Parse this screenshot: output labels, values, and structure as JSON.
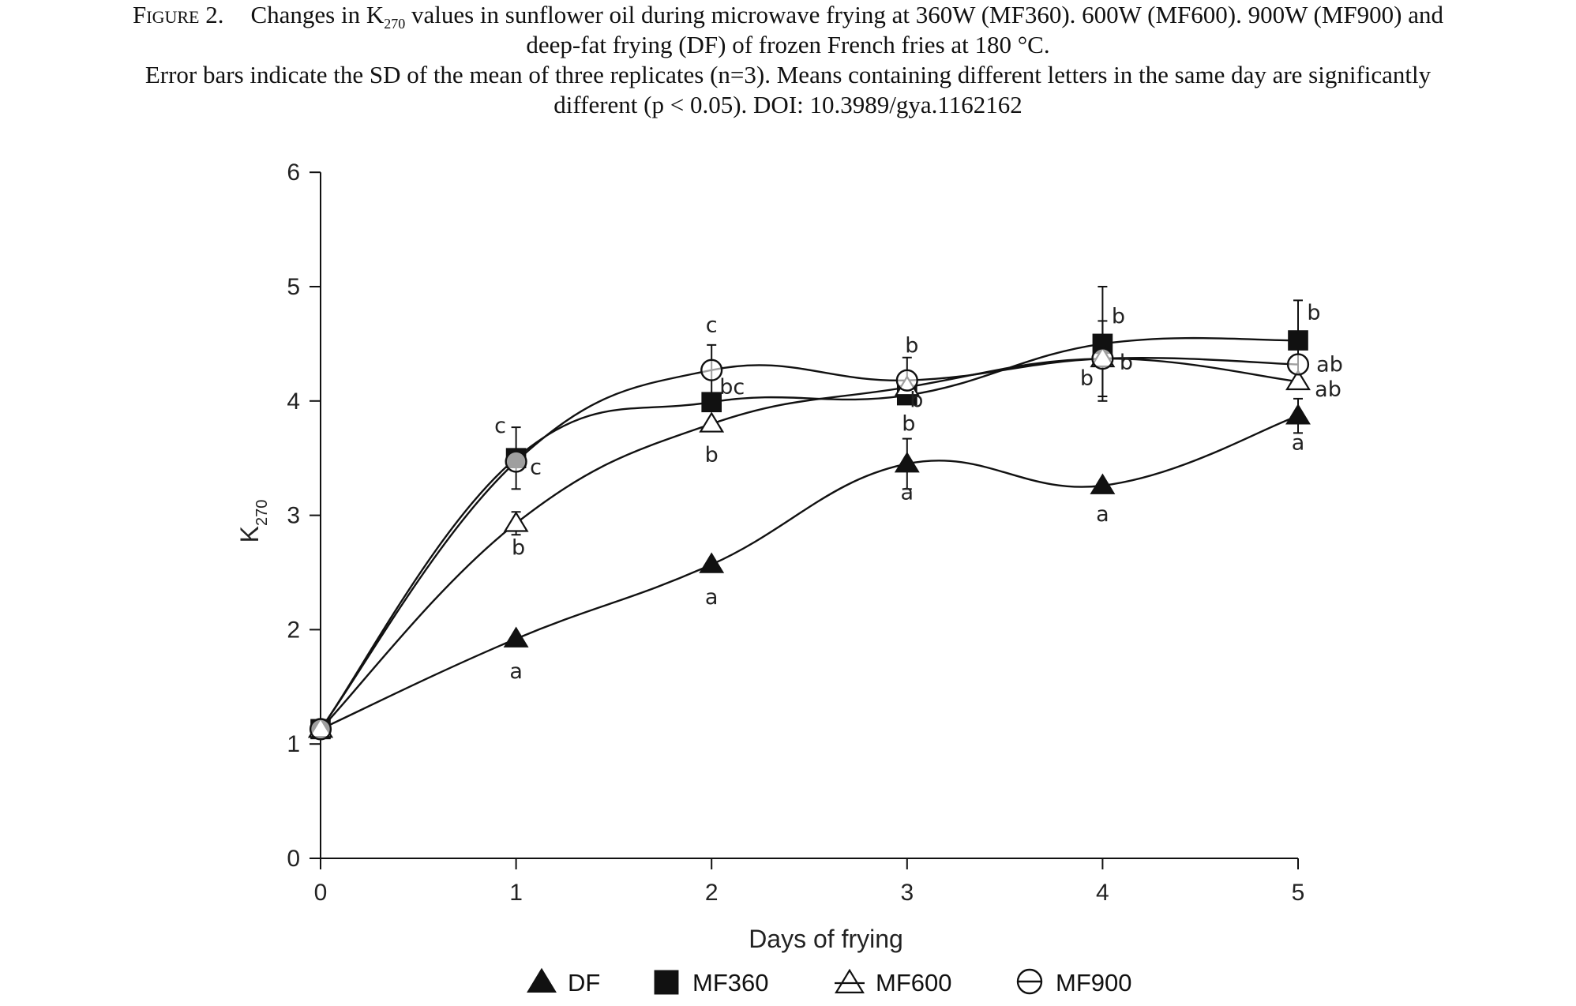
{
  "caption": {
    "label": "Figure 2.",
    "line1_pre": "Changes in K",
    "line1_sub": "270",
    "line1_post": " values in sunflower oil during microwave frying at 360W (MF360). 600W (MF600). 900W (MF900) and",
    "line2": "deep-fat frying (DF) of frozen French fries at 180 °C.",
    "line3": "Error bars indicate the SD of the mean of three replicates (n=3). Means containing different letters in the same day are significantly",
    "line4": "different (p < 0.05). DOI: 10.3989/gya.1162162"
  },
  "chart_data": {
    "type": "line",
    "xlabel": "Days of frying",
    "ylabel": {
      "main": "K",
      "sub": "270"
    },
    "x": [
      0,
      1,
      2,
      3,
      4,
      5
    ],
    "xlim": [
      0,
      5
    ],
    "ylim": [
      0,
      6
    ],
    "xticks": [
      "0",
      "1",
      "2",
      "3",
      "4",
      "5"
    ],
    "yticks": [
      "0",
      "1",
      "2",
      "3",
      "4",
      "5",
      "6"
    ],
    "grid": false,
    "legend_position": "bottom",
    "series": [
      {
        "name": "DF",
        "marker": "filled-triangle",
        "values": [
          1.13,
          1.92,
          2.57,
          3.45,
          3.26,
          3.87
        ],
        "sd": [
          0,
          0,
          0,
          0.22,
          0,
          0.15
        ],
        "letters": [
          "",
          "a",
          "a",
          "a",
          "a",
          "a"
        ]
      },
      {
        "name": "MF360",
        "marker": "filled-square",
        "values": [
          1.13,
          3.5,
          3.99,
          4.05,
          4.5,
          4.53
        ],
        "sd": [
          0,
          0.27,
          0,
          0,
          0.5,
          0.35
        ],
        "letters": [
          "",
          "c",
          "bc",
          "b",
          "b",
          "b"
        ]
      },
      {
        "name": "MF600",
        "marker": "open-triangle",
        "values": [
          1.13,
          2.93,
          3.8,
          4.12,
          4.37,
          4.17
        ],
        "sd": [
          0,
          0.1,
          0,
          0,
          0,
          0
        ],
        "letters": [
          "",
          "b",
          "b",
          "b",
          "b",
          "ab"
        ]
      },
      {
        "name": "MF900",
        "marker": "open-circle",
        "values": [
          1.13,
          3.47,
          4.27,
          4.18,
          4.37,
          4.32
        ],
        "sd": [
          0,
          0,
          0.22,
          0.2,
          0.33,
          0
        ],
        "letters": [
          "",
          "c",
          "c",
          "b",
          "b",
          "ab"
        ]
      }
    ]
  },
  "colors": {
    "ink": "#111111",
    "background": "#ffffff"
  }
}
